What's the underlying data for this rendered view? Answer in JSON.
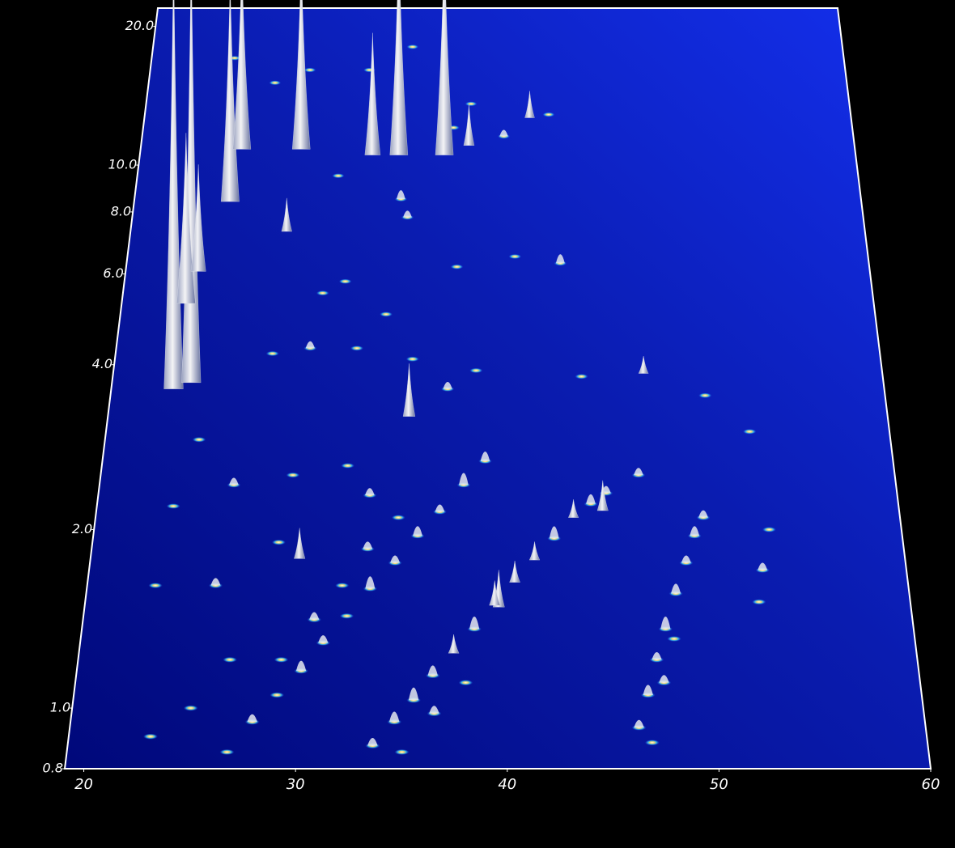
{
  "chart_data": {
    "type": "peaks3d",
    "xlim": [
      19.1,
      60
    ],
    "xticks": [
      20,
      30,
      40,
      50,
      60
    ],
    "ylim": [
      0.8,
      22
    ],
    "log_y": true,
    "yticks": [
      0.8,
      {
        "value": 1,
        "label": "1.0"
      },
      {
        "value": 2,
        "label": "2.0"
      },
      {
        "value": 4,
        "label": "4.0"
      },
      {
        "value": 6,
        "label": "6.0"
      },
      {
        "value": 8,
        "label": "8.0"
      },
      {
        "value": 10,
        "label": "10.0"
      },
      {
        "value": 20,
        "label": "20.0"
      }
    ],
    "color": "#e4e8ee",
    "x": [
      22.4,
      23.3,
      22.6,
      23.1,
      24.5,
      24.9,
      28.3,
      32.4,
      33.9,
      36.5,
      37.9,
      41.4,
      34.9,
      44.9,
      39.6,
      47.3,
      29.6,
      27.8,
      26.7,
      27.8,
      28.9,
      30.0,
      31.0,
      32.1,
      33.2,
      34.4,
      35.5,
      36.6,
      37.8,
      38.9,
      29.0,
      30.5,
      31.8,
      33.0,
      34.5,
      33.6,
      34.6,
      35.5,
      36.4,
      37.4,
      38.4,
      39.4,
      40.4,
      41.4,
      42.4,
      43.4,
      44.3,
      45.1,
      35.0,
      36.5,
      38.0,
      46.3,
      46.8,
      47.3,
      47.8,
      48.4,
      49.0,
      49.5,
      50.0,
      46.9,
      47.6,
      48.2,
      52.5,
      52.8,
      53.3,
      52.7,
      50.5,
      46.8,
      44.0,
      43.0,
      40.5,
      37.3,
      34.5,
      34.1,
      30.5,
      30.0,
      27.5,
      29.5,
      32.0,
      35.0,
      38.4,
      36.9,
      24.0,
      23.0,
      26.0,
      29.0,
      31.8,
      33.0,
      22.5,
      25.5,
      28.5,
      26.5,
      24.8,
      23.0,
      31.2,
      33.5,
      39.9,
      37.0,
      32.0,
      34.5,
      38.0,
      42.5,
      28.5,
      26.5,
      24.0
    ],
    "y": [
      3.6,
      3.7,
      5.25,
      6.07,
      8.4,
      10.8,
      10.8,
      10.5,
      10.5,
      10.5,
      11,
      12.6,
      3.2,
      2.16,
      1.47,
      3.85,
      1.78,
      7.3,
      0.85,
      0.95,
      1.05,
      1.15,
      1.28,
      1.42,
      1.58,
      1.75,
      1.95,
      2.15,
      2.4,
      2.65,
      1.2,
      1.4,
      1.6,
      1.85,
      2.1,
      0.87,
      0.95,
      1.03,
      1.13,
      1.23,
      1.35,
      1.48,
      1.62,
      1.77,
      1.93,
      2.1,
      2.22,
      2.32,
      0.85,
      0.98,
      1.1,
      0.93,
      1.05,
      1.2,
      1.35,
      1.55,
      1.75,
      1.95,
      2.1,
      0.88,
      1.1,
      1.3,
      1.5,
      1.7,
      2.0,
      3.0,
      3.5,
      2.5,
      3.8,
      6.3,
      6.5,
      6.2,
      7.8,
      8.5,
      9.5,
      5.5,
      4.2,
      4.3,
      4.3,
      4.1,
      3.9,
      3.6,
      2.9,
      2.2,
      2.4,
      2.5,
      2.6,
      2.3,
      1.6,
      1.6,
      1.9,
      1.2,
      1.0,
      0.9,
      5.8,
      5.0,
      11.5,
      12,
      16,
      18,
      13.5,
      12.8,
      16,
      15,
      17
    ],
    "values": [
      150,
      150,
      60,
      38,
      80,
      70,
      70,
      45,
      80,
      80,
      15,
      10,
      18,
      10,
      12,
      6,
      10,
      12,
      2,
      3,
      2,
      4,
      3,
      2,
      5,
      3,
      4,
      3,
      5,
      4,
      2,
      3,
      2,
      3,
      2,
      3,
      4,
      5,
      4,
      6,
      5,
      8,
      7,
      6,
      5,
      6,
      4,
      3,
      2,
      3,
      2,
      3,
      4,
      3,
      5,
      4,
      3,
      4,
      3,
      2,
      3,
      2,
      2,
      3,
      2,
      2,
      2,
      3,
      2,
      4,
      2,
      2,
      3,
      4,
      2,
      2,
      2,
      3,
      2,
      2,
      2,
      3,
      2,
      2,
      3,
      2,
      2,
      3,
      2,
      3,
      2,
      2,
      2,
      2,
      2,
      2,
      3,
      2,
      2,
      2,
      2,
      2,
      2,
      2,
      2
    ]
  }
}
